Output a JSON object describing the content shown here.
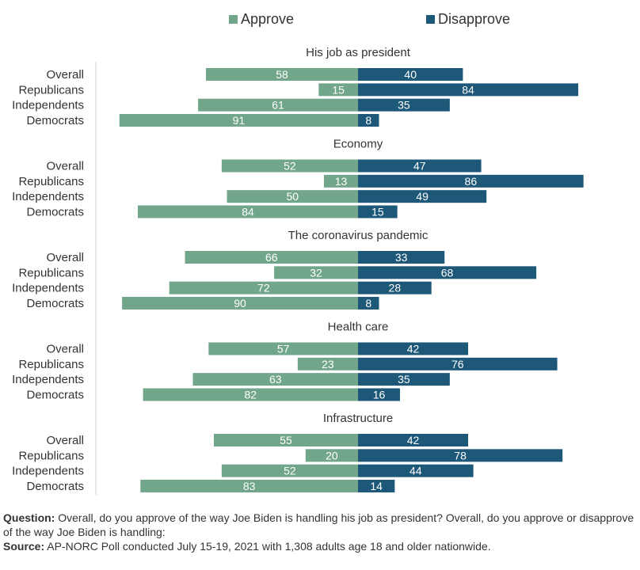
{
  "legend": {
    "approve": "Approve",
    "disapprove": "Disapprove"
  },
  "colors": {
    "approve": "#72a68a",
    "disapprove": "#1e5878",
    "axis": "#d0d0d0",
    "text": "#333333"
  },
  "chart_data": {
    "type": "bar",
    "orientation": "horizontal-diverging",
    "series_names": [
      "Approve",
      "Disapprove"
    ],
    "categories": [
      "Overall",
      "Republicans",
      "Independents",
      "Democrats"
    ],
    "panels": [
      {
        "title": "His job as president",
        "approve": [
          58,
          15,
          61,
          91
        ],
        "disapprove": [
          40,
          84,
          35,
          8
        ]
      },
      {
        "title": "Economy",
        "approve": [
          52,
          13,
          50,
          84
        ],
        "disapprove": [
          47,
          86,
          49,
          15
        ]
      },
      {
        "title": "The coronavirus pandemic",
        "approve": [
          66,
          32,
          72,
          90
        ],
        "disapprove": [
          33,
          68,
          28,
          8
        ]
      },
      {
        "title": "Health care",
        "approve": [
          57,
          23,
          63,
          82
        ],
        "disapprove": [
          42,
          76,
          35,
          16
        ]
      },
      {
        "title": "Infrastructure",
        "approve": [
          55,
          20,
          52,
          83
        ],
        "disapprove": [
          42,
          78,
          44,
          14
        ]
      }
    ],
    "xlim": [
      -100,
      100
    ],
    "legend_position": "top-center"
  },
  "notes": {
    "question_label": "Question:",
    "question_text": " Overall, do you approve of the way Joe Biden is handling his job as president? Overall, do you approve or disapprove of the way Joe Biden is handling:",
    "source_label": "Source:",
    "source_text": " AP-NORC Poll conducted July 15-19, 2021 with 1,308 adults age 18 and older nationwide."
  }
}
